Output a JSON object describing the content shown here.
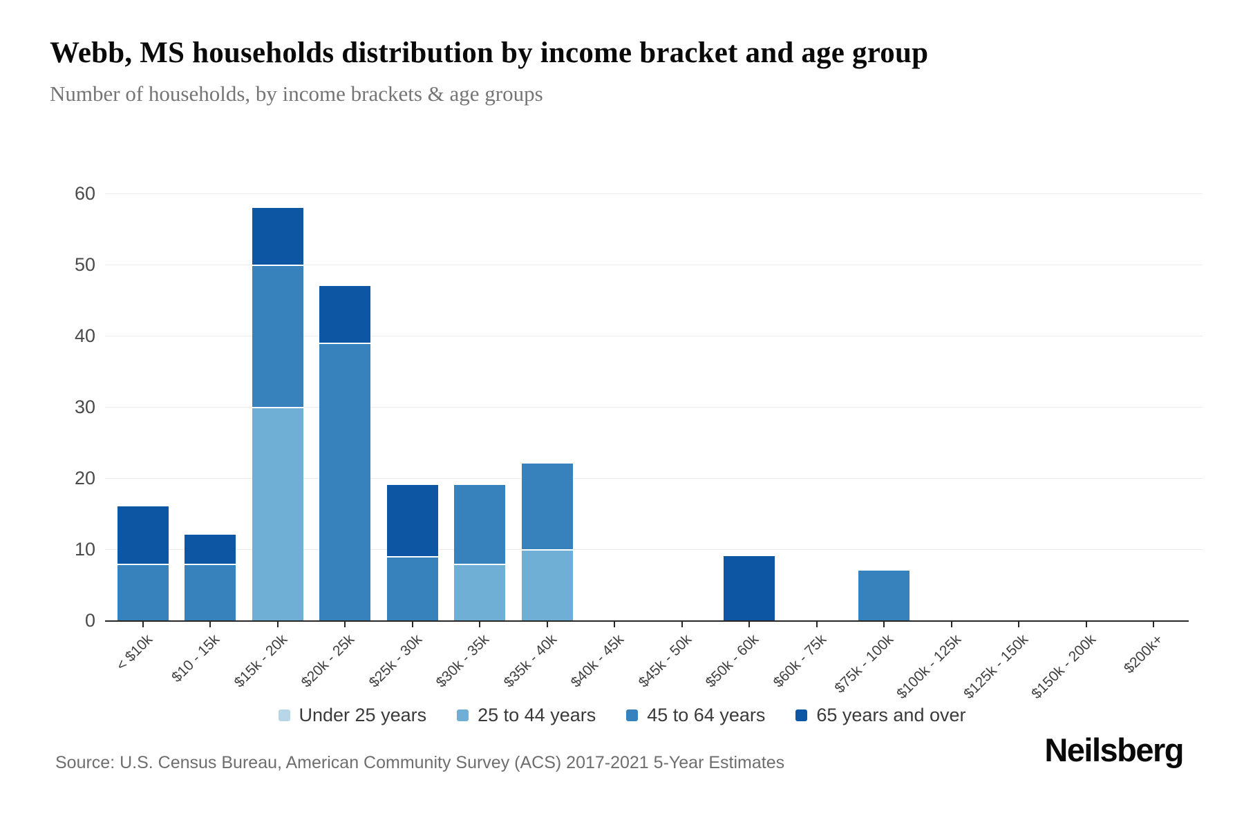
{
  "header": {
    "title": "Webb, MS households distribution by income bracket and age group",
    "subtitle": "Number of households, by income brackets & age groups"
  },
  "chart_data": {
    "type": "bar",
    "stacked": true,
    "title": "Webb, MS households distribution by income bracket and age group",
    "subtitle": "Number of households, by income brackets & age groups",
    "xlabel": "",
    "ylabel": "",
    "ylim": [
      0,
      60
    ],
    "yticks": [
      0,
      10,
      20,
      30,
      40,
      50,
      60
    ],
    "grid": "horizontal",
    "legend_position": "bottom",
    "categories": [
      "< $10k",
      "$10 - 15k",
      "$15k - 20k",
      "$20k - 25k",
      "$25k - 30k",
      "$30k - 35k",
      "$35k - 40k",
      "$40k - 45k",
      "$45k - 50k",
      "$50k - 60k",
      "$60k - 75k",
      "$75k - 100k",
      "$100k - 125k",
      "$125k - 150k",
      "$150k - 200k",
      "$200k+"
    ],
    "series": [
      {
        "name": "Under 25 years",
        "color": "#b7d7e9",
        "values": [
          0,
          0,
          0,
          0,
          0,
          0,
          0,
          0,
          0,
          0,
          0,
          0,
          0,
          0,
          0,
          0
        ]
      },
      {
        "name": "25 to 44 years",
        "color": "#6fafd6",
        "values": [
          0,
          0,
          30,
          0,
          0,
          8,
          10,
          0,
          0,
          0,
          0,
          0,
          0,
          0,
          0,
          0
        ]
      },
      {
        "name": "45 to 64 years",
        "color": "#3781bd",
        "values": [
          8,
          8,
          20,
          39,
          9,
          11,
          12,
          0,
          0,
          0,
          0,
          7,
          0,
          0,
          0,
          0
        ]
      },
      {
        "name": "65 years and over",
        "color": "#0d56a4",
        "values": [
          8,
          4,
          8,
          8,
          10,
          0,
          0,
          0,
          0,
          9,
          0,
          0,
          0,
          0,
          0,
          0
        ]
      }
    ],
    "totals": [
      16,
      12,
      58,
      47,
      19,
      19,
      22,
      0,
      0,
      9,
      0,
      7,
      0,
      0,
      0,
      0
    ]
  },
  "footer": {
    "source": "Source: U.S. Census Bureau, American Community Survey (ACS) 2017-2021 5-Year Estimates",
    "brand": "Neilsberg"
  }
}
